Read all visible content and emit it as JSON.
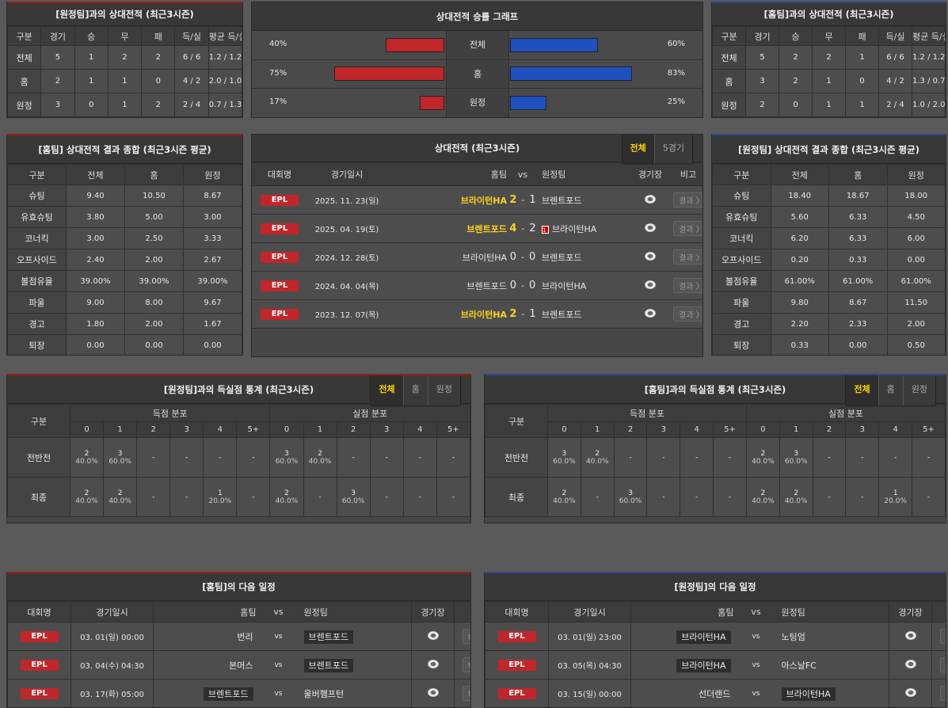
{
  "colors": {
    "home_bar": "#c0262a",
    "away_bar": "#2050c0",
    "highlight": "#ffd21a",
    "epl": "#c0262a"
  },
  "h2h_away": {
    "title": "[원정팀]과의 상대전적 (최근3시즌)",
    "headers": [
      "구분",
      "경기",
      "승",
      "무",
      "패",
      "득/실",
      "평균 득/실"
    ],
    "rows": [
      [
        "전체",
        "5",
        "1",
        "2",
        "2",
        "6 / 6",
        "1.2 / 1.2"
      ],
      [
        "홈",
        "2",
        "1",
        "1",
        "0",
        "4 / 2",
        "2.0 / 1.0"
      ],
      [
        "원정",
        "3",
        "0",
        "1",
        "2",
        "2 / 4",
        "0.7 / 1.3"
      ]
    ]
  },
  "h2h_home": {
    "title": "[홈팀]과의 상대전적 (최근3시즌)",
    "headers": [
      "구분",
      "경기",
      "승",
      "무",
      "패",
      "득/실",
      "평균 득/실"
    ],
    "rows": [
      [
        "전체",
        "5",
        "2",
        "2",
        "1",
        "6 / 6",
        "1.2 / 1.2"
      ],
      [
        "홈",
        "3",
        "2",
        "1",
        "0",
        "4 / 2",
        "1.3 / 0.7"
      ],
      [
        "원정",
        "2",
        "0",
        "1",
        "1",
        "2 / 4",
        "1.0 / 2.0"
      ]
    ]
  },
  "graph": {
    "title": "상대전적 승률 그래프",
    "rows": [
      {
        "label": "전체",
        "left": "40%",
        "left_value": 40,
        "right": "60%",
        "right_value": 60
      },
      {
        "label": "홈",
        "left": "75%",
        "left_value": 75,
        "right": "83%",
        "right_value": 83
      },
      {
        "label": "원정",
        "left": "17%",
        "left_value": 17,
        "right": "25%",
        "right_value": 25
      }
    ]
  },
  "stats_home": {
    "title": "[홈팀] 상대전적 결과 종합 (최근3시즌 평균)",
    "headers": [
      "구분",
      "전체",
      "홈",
      "원정"
    ],
    "rows": [
      [
        "슈팅",
        "9.40",
        "10.50",
        "8.67"
      ],
      [
        "유효슈팅",
        "3.80",
        "5.00",
        "3.00"
      ],
      [
        "코너킥",
        "3.00",
        "2.50",
        "3.33"
      ],
      [
        "오프사이드",
        "2.40",
        "2.00",
        "2.67"
      ],
      [
        "볼점유율",
        "39.00%",
        "39.00%",
        "39.00%"
      ],
      [
        "파울",
        "9.00",
        "8.00",
        "9.67"
      ],
      [
        "경고",
        "1.80",
        "2.00",
        "1.67"
      ],
      [
        "퇴장",
        "0.00",
        "0.00",
        "0.00"
      ]
    ]
  },
  "stats_away": {
    "title": "[원정팀] 상대전적 결과 종합 (최근3시즌 평균)",
    "headers": [
      "구분",
      "전체",
      "홈",
      "원정"
    ],
    "rows": [
      [
        "슈팅",
        "18.40",
        "18.67",
        "18.00"
      ],
      [
        "유효슈팅",
        "5.60",
        "6.33",
        "4.50"
      ],
      [
        "코너킥",
        "6.20",
        "6.33",
        "6.00"
      ],
      [
        "오프사이드",
        "0.20",
        "0.33",
        "0.00"
      ],
      [
        "볼점유율",
        "61.00%",
        "61.00%",
        "61.00%"
      ],
      [
        "파울",
        "9.80",
        "8.67",
        "11.50"
      ],
      [
        "경고",
        "2.20",
        "2.33",
        "2.00"
      ],
      [
        "퇴장",
        "0.33",
        "0.00",
        "0.50"
      ]
    ]
  },
  "matches": {
    "title": "상대전적 (최근3시즌)",
    "toggle": [
      "전체",
      "5경기"
    ],
    "headers": [
      "대회명",
      "경기일시",
      "홈팀",
      "vs",
      "원정팀",
      "경기장",
      "비고"
    ],
    "rows": [
      {
        "league": "EPL",
        "date": "2025. 11. 23(일)",
        "home": "브라이턴HA",
        "hs": "2",
        "sep": "-",
        "as": "1",
        "away": "브렌트포드",
        "winner": "home",
        "red": "",
        "btn": "결과 〉"
      },
      {
        "league": "EPL",
        "date": "2025. 04. 19(토)",
        "home": "브렌트포드",
        "hs": "4",
        "sep": "-",
        "as": "2",
        "away": "브라이턴HA",
        "winner": "home",
        "red": "1",
        "btn": "결과 〉"
      },
      {
        "league": "EPL",
        "date": "2024. 12. 28(토)",
        "home": "브라이턴HA",
        "hs": "0",
        "sep": "-",
        "as": "0",
        "away": "브렌트포드",
        "winner": "",
        "red": "",
        "btn": "결과 〉"
      },
      {
        "league": "EPL",
        "date": "2024. 04. 04(목)",
        "home": "브렌트포드",
        "hs": "0",
        "sep": "-",
        "as": "0",
        "away": "브라이턴HA",
        "winner": "",
        "red": "",
        "btn": "결과 〉"
      },
      {
        "league": "EPL",
        "date": "2023. 12. 07(목)",
        "home": "브라이턴HA",
        "hs": "2",
        "sep": "-",
        "as": "1",
        "away": "브렌트포드",
        "winner": "home",
        "red": "",
        "btn": "결과 〉"
      }
    ]
  },
  "goals_away": {
    "title": "[원정팀]과의 득실점 통계 (최근3시즌)",
    "toggle": [
      "전체",
      "홈",
      "원정"
    ],
    "gubun": "구분",
    "scored": "득점 분포",
    "conceded": "실점 분포",
    "cols": [
      "0",
      "1",
      "2",
      "3",
      "4",
      "5+",
      "0",
      "1",
      "2",
      "3",
      "4",
      "5+"
    ],
    "rows": [
      {
        "label": "전반전",
        "cells": [
          [
            "2",
            "40.0%"
          ],
          [
            "3",
            "60.0%"
          ],
          [
            "-"
          ],
          [
            "-"
          ],
          [
            "-"
          ],
          [
            "-"
          ],
          [
            "3",
            "60.0%"
          ],
          [
            "2",
            "40.0%"
          ],
          [
            "-"
          ],
          [
            "-"
          ],
          [
            "-"
          ],
          [
            "-"
          ]
        ]
      },
      {
        "label": "최종",
        "cells": [
          [
            "2",
            "40.0%"
          ],
          [
            "2",
            "40.0%"
          ],
          [
            "-"
          ],
          [
            "-"
          ],
          [
            "1",
            "20.0%"
          ],
          [
            "-"
          ],
          [
            "2",
            "40.0%"
          ],
          [
            "-"
          ],
          [
            "3",
            "60.0%"
          ],
          [
            "-"
          ],
          [
            "-"
          ],
          [
            "-"
          ]
        ]
      }
    ]
  },
  "goals_home": {
    "title": "[홈팀]과의 득실점 통계 (최근3시즌)",
    "toggle": [
      "전체",
      "홈",
      "원정"
    ],
    "gubun": "구분",
    "scored": "득점 분포",
    "conceded": "실점 분포",
    "cols": [
      "0",
      "1",
      "2",
      "3",
      "4",
      "5+",
      "0",
      "1",
      "2",
      "3",
      "4",
      "5+"
    ],
    "rows": [
      {
        "label": "전반전",
        "cells": [
          [
            "3",
            "60.0%"
          ],
          [
            "2",
            "40.0%"
          ],
          [
            "-"
          ],
          [
            "-"
          ],
          [
            "-"
          ],
          [
            "-"
          ],
          [
            "2",
            "40.0%"
          ],
          [
            "3",
            "60.0%"
          ],
          [
            "-"
          ],
          [
            "-"
          ],
          [
            "-"
          ],
          [
            "-"
          ]
        ]
      },
      {
        "label": "최종",
        "cells": [
          [
            "2",
            "40.0%"
          ],
          [
            "-"
          ],
          [
            "3",
            "60.0%"
          ],
          [
            "-"
          ],
          [
            "-"
          ],
          [
            "-"
          ],
          [
            "2",
            "40.0%"
          ],
          [
            "2",
            "40.0%"
          ],
          [
            "-"
          ],
          [
            "-"
          ],
          [
            "1",
            "20.0%"
          ],
          [
            "-"
          ]
        ]
      }
    ]
  },
  "next_home": {
    "title": "[홈팀]의 다음 일정",
    "headers": [
      "대회명",
      "경기일시",
      "홈팀",
      "vs",
      "원정팀",
      "경기장",
      "비고"
    ],
    "rows": [
      {
        "league": "EPL",
        "date": "03. 01(일) 00:00",
        "home": "번리",
        "vs": "vs",
        "away": "브렌트포드",
        "focus": "away",
        "btn": "비교 〉"
      },
      {
        "league": "EPL",
        "date": "03. 04(수) 04:30",
        "home": "본머스",
        "vs": "vs",
        "away": "브렌트포드",
        "focus": "away",
        "btn": "비교 〉"
      },
      {
        "league": "EPL",
        "date": "03. 17(화) 05:00",
        "home": "브렌트포드",
        "vs": "vs",
        "away": "울버햄프턴",
        "focus": "home",
        "btn": "비교 〉"
      }
    ]
  },
  "next_away": {
    "title": "[원정팀]의 다음 일정",
    "headers": [
      "대회명",
      "경기일시",
      "홈팀",
      "vs",
      "원정팀",
      "경기장",
      "비고"
    ],
    "rows": [
      {
        "league": "EPL",
        "date": "03. 01(일) 23:00",
        "home": "브라이턴HA",
        "vs": "vs",
        "away": "노팅엄",
        "focus": "home",
        "btn": "비교 〉"
      },
      {
        "league": "EPL",
        "date": "03. 05(목) 04:30",
        "home": "브라이턴HA",
        "vs": "vs",
        "away": "아스날FC",
        "focus": "home",
        "btn": "비교 〉"
      },
      {
        "league": "EPL",
        "date": "03. 15(일) 00:00",
        "home": "선더랜드",
        "vs": "vs",
        "away": "브라이턴HA",
        "focus": "away",
        "btn": "비교 〉"
      }
    ]
  }
}
